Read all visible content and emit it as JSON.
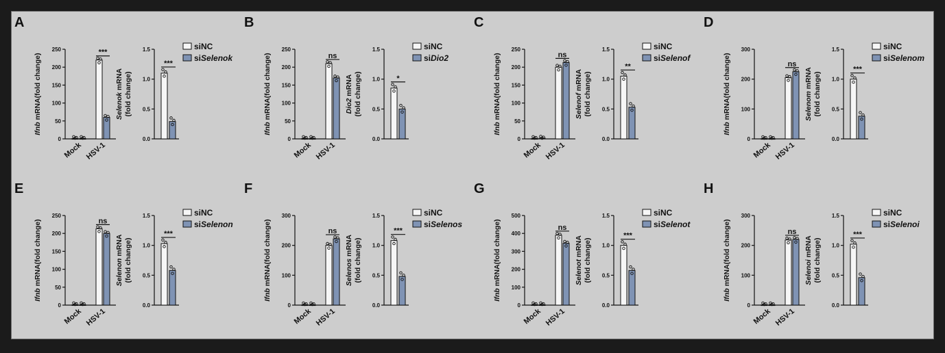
{
  "colors": {
    "sinc": "#f6f6f6",
    "sitarget": "#7f93b4",
    "axis": "#111111",
    "background": "#cdcdcd"
  },
  "chart_data": [
    {
      "panel": "A",
      "target": "Selenok",
      "ifnb": {
        "type": "bar",
        "ylabel_italic": "Ifnb",
        "ylabel_rest": " mRNA(fold change)",
        "yticks": [
          0,
          50,
          100,
          150,
          200,
          250
        ],
        "ylim": [
          0,
          250
        ],
        "categories": [
          "Mock",
          "HSV-1"
        ],
        "series": [
          {
            "name": "siNC",
            "values": [
              1,
              220
            ]
          },
          {
            "name": "siSelenok",
            "values": [
              1,
              60
            ]
          }
        ],
        "significance": "***"
      },
      "target_mrna": {
        "type": "bar",
        "ylabel_italic": "Selenok",
        "ylabel_rest": " mRNA",
        "ylabel_line2": "(fold change)",
        "yticks": [
          "0.0",
          "0.5",
          "1.0",
          "1.5"
        ],
        "ylim": [
          0,
          1.5
        ],
        "series": [
          {
            "name": "siNC",
            "values": [
              1.1
            ]
          },
          {
            "name": "siSelenok",
            "values": [
              0.29
            ]
          }
        ],
        "significance": "***"
      },
      "legend": {
        "nc": "siNC",
        "si_prefix": "si",
        "si_italic": "Selenok"
      }
    },
    {
      "panel": "B",
      "target": "Dio2",
      "ifnb": {
        "type": "bar",
        "ylabel_italic": "Ifnb",
        "ylabel_rest": " mRNA(fold change)",
        "yticks": [
          0,
          50,
          100,
          150,
          200,
          250
        ],
        "ylim": [
          0,
          250
        ],
        "categories": [
          "Mock",
          "HSV-1"
        ],
        "series": [
          {
            "name": "siNC",
            "values": [
              1,
              210
            ]
          },
          {
            "name": "siDio2",
            "values": [
              1,
              170
            ]
          }
        ],
        "significance": "ns"
      },
      "target_mrna": {
        "type": "bar",
        "ylabel_italic": "Dio2",
        "ylabel_rest": " mRNA",
        "ylabel_line2": "(fold change)",
        "yticks": [
          "0.0",
          "0.5",
          "1.0",
          "1.5"
        ],
        "ylim": [
          0,
          1.5
        ],
        "series": [
          {
            "name": "siNC",
            "values": [
              0.85
            ]
          },
          {
            "name": "siDio2",
            "values": [
              0.5
            ]
          }
        ],
        "significance": "*"
      },
      "legend": {
        "nc": "siNC",
        "si_prefix": "si",
        "si_italic": "Dio2"
      }
    },
    {
      "panel": "C",
      "target": "Selenof",
      "ifnb": {
        "type": "bar",
        "ylabel_italic": "Ifnb",
        "ylabel_rest": " mRNA(fold change)",
        "yticks": [
          0,
          50,
          100,
          150,
          200,
          250
        ],
        "ylim": [
          0,
          250
        ],
        "categories": [
          "Mock",
          "HSV-1"
        ],
        "series": [
          {
            "name": "siNC",
            "values": [
              1,
              200
            ]
          },
          {
            "name": "siSelenof",
            "values": [
              2,
              213
            ]
          }
        ],
        "significance": "ns"
      },
      "target_mrna": {
        "type": "bar",
        "ylabel_italic": "Selenof",
        "ylabel_rest": " mRNA",
        "ylabel_line2": "(fold change)",
        "yticks": [
          "0.0",
          "0.5",
          "1.0",
          "1.5"
        ],
        "ylim": [
          0,
          1.5
        ],
        "series": [
          {
            "name": "siNC",
            "values": [
              1.05
            ]
          },
          {
            "name": "siSelenof",
            "values": [
              0.53
            ]
          }
        ],
        "significance": "**"
      },
      "legend": {
        "nc": "siNC",
        "si_prefix": "si",
        "si_italic": "Selenof"
      }
    },
    {
      "panel": "D",
      "target": "Selenom",
      "ifnb": {
        "type": "bar",
        "ylabel_italic": "Ifnb",
        "ylabel_rest": " mRNA(fold change)",
        "yticks": [
          0,
          100,
          200,
          300
        ],
        "ylim": [
          0,
          300
        ],
        "categories": [
          "Mock",
          "HSV-1"
        ],
        "series": [
          {
            "name": "siNC",
            "values": [
              1,
              205
            ]
          },
          {
            "name": "siSelenom",
            "values": [
              1,
              225
            ]
          }
        ],
        "significance": "ns"
      },
      "target_mrna": {
        "type": "bar",
        "ylabel_italic": "Selenom",
        "ylabel_rest": " mRNA",
        "ylabel_line2": "(fold change)",
        "yticks": [
          "0.0",
          "0.5",
          "1.0",
          "1.5"
        ],
        "ylim": [
          0,
          1.5
        ],
        "series": [
          {
            "name": "siNC",
            "values": [
              1.0
            ]
          },
          {
            "name": "siSelenom",
            "values": [
              0.38
            ]
          }
        ],
        "significance": "***"
      },
      "legend": {
        "nc": "siNC",
        "si_prefix": "si",
        "si_italic": "Selenom"
      }
    },
    {
      "panel": "E",
      "target": "Selenon",
      "ifnb": {
        "type": "bar",
        "ylabel_italic": "Ifnb",
        "ylabel_rest": " mRNA(fold change)",
        "yticks": [
          0,
          50,
          100,
          150,
          200,
          250
        ],
        "ylim": [
          0,
          250
        ],
        "categories": [
          "Mock",
          "HSV-1"
        ],
        "series": [
          {
            "name": "siNC",
            "values": [
              1,
              213
            ]
          },
          {
            "name": "siSelenon",
            "values": [
              1,
              200
            ]
          }
        ],
        "significance": "ns"
      },
      "target_mrna": {
        "type": "bar",
        "ylabel_italic": "Selenon",
        "ylabel_rest": " mRNA",
        "ylabel_line2": "(fold change)",
        "yticks": [
          "0.0",
          "0.5",
          "1.0",
          "1.5"
        ],
        "ylim": [
          0,
          1.5
        ],
        "series": [
          {
            "name": "siNC",
            "values": [
              1.03
            ]
          },
          {
            "name": "siSelenon",
            "values": [
              0.58
            ]
          }
        ],
        "significance": "***"
      },
      "legend": {
        "nc": "siNC",
        "si_prefix": "si",
        "si_italic": "Selenon"
      }
    },
    {
      "panel": "F",
      "target": "Selenos",
      "ifnb": {
        "type": "bar",
        "ylabel_italic": "Ifnb",
        "ylabel_rest": " mRNA(fold change)",
        "yticks": [
          0,
          100,
          200,
          300
        ],
        "ylim": [
          0,
          300
        ],
        "categories": [
          "Mock",
          "HSV-1"
        ],
        "series": [
          {
            "name": "siNC",
            "values": [
              1,
              200
            ]
          },
          {
            "name": "siSelenos",
            "values": [
              1,
              222
            ]
          }
        ],
        "significance": "ns"
      },
      "target_mrna": {
        "type": "bar",
        "ylabel_italic": "Selenos",
        "ylabel_rest": " mRNA",
        "ylabel_line2": "(fold change)",
        "yticks": [
          "0.0",
          "0.5",
          "1.0",
          "1.5"
        ],
        "ylim": [
          0,
          1.5
        ],
        "series": [
          {
            "name": "siNC",
            "values": [
              1.08
            ]
          },
          {
            "name": "siSelenos",
            "values": [
              0.48
            ]
          }
        ],
        "significance": "***"
      },
      "legend": {
        "nc": "siNC",
        "si_prefix": "si",
        "si_italic": "Selenos"
      }
    },
    {
      "panel": "G",
      "target": "Selenot",
      "ifnb": {
        "type": "bar",
        "ylabel_italic": "Ifnb",
        "ylabel_rest": " mRNA(fold change)",
        "yticks": [
          0,
          100,
          200,
          300,
          400,
          500
        ],
        "ylim": [
          0,
          500
        ],
        "categories": [
          "Mock",
          "HSV-1"
        ],
        "series": [
          {
            "name": "siNC",
            "values": [
              2,
              390
            ]
          },
          {
            "name": "siSelenot",
            "values": [
              2,
              345
            ]
          }
        ],
        "significance": "ns"
      },
      "target_mrna": {
        "type": "bar",
        "ylabel_italic": "Selenot",
        "ylabel_rest": " mRNA",
        "ylabel_line2": "(fold change)",
        "yticks": [
          "0.0",
          "0.5",
          "1.0",
          "1.5"
        ],
        "ylim": [
          0,
          1.5
        ],
        "series": [
          {
            "name": "siNC",
            "values": [
              1.0
            ]
          },
          {
            "name": "siSelenot",
            "values": [
              0.58
            ]
          }
        ],
        "significance": "***"
      },
      "legend": {
        "nc": "siNC",
        "si_prefix": "si",
        "si_italic": "Selenot"
      }
    },
    {
      "panel": "H",
      "target": "Selenoi",
      "ifnb": {
        "type": "bar",
        "ylabel_italic": "Ifnb",
        "ylabel_rest": " mRNA(fold change)",
        "yticks": [
          0,
          100,
          200,
          300
        ],
        "ylim": [
          0,
          300
        ],
        "categories": [
          "Mock",
          "HSV-1"
        ],
        "series": [
          {
            "name": "siNC",
            "values": [
              1,
              218
            ]
          },
          {
            "name": "siSelenoi",
            "values": [
              1,
              220
            ]
          }
        ],
        "significance": "ns"
      },
      "target_mrna": {
        "type": "bar",
        "ylabel_italic": "Selenoi",
        "ylabel_rest": " mRNA",
        "ylabel_line2": "(fold change)",
        "yticks": [
          "0.0",
          "0.5",
          "1.0",
          "1.5"
        ],
        "ylim": [
          0,
          1.5
        ],
        "series": [
          {
            "name": "siNC",
            "values": [
              1.02
            ]
          },
          {
            "name": "siSelenoi",
            "values": [
              0.46
            ]
          }
        ],
        "significance": "***"
      },
      "legend": {
        "nc": "siNC",
        "si_prefix": "si",
        "si_italic": "Selenoi"
      }
    }
  ]
}
